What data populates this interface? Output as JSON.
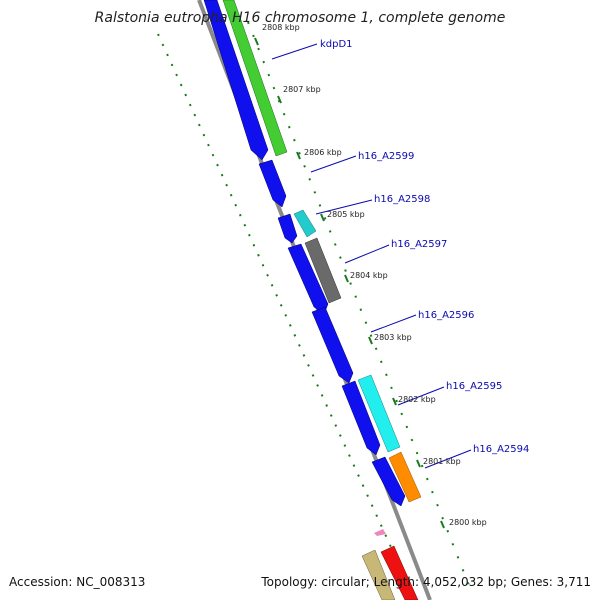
{
  "title": "Ralstonia eutropha H16 chromosome 1, complete genome",
  "footer": {
    "accession": "Accession: NC_008313",
    "summary": "Topology: circular; Length: 4,052,032 bp; Genes: 3,711"
  },
  "colors": {
    "backbone": "#8a8a8a",
    "cds_forward": "#1010ee",
    "gene_label": "#0a0ab0",
    "tick_mark": "#1a7a1a",
    "gc_dots": "#1a7a1a"
  },
  "kbp_labels": [
    "2808 kbp",
    "2807 kbp",
    "2806 kbp",
    "2805 kbp",
    "2804 kbp",
    "2803 kbp",
    "2802 kbp",
    "2801 kbp",
    "2800 kbp"
  ],
  "gene_labels": [
    "kdpD1",
    "h16_A2599",
    "h16_A2598",
    "h16_A2597",
    "h16_A2596",
    "h16_A2595",
    "h16_A2594"
  ],
  "feature_colors": [
    "#44cc33",
    "#22cccc",
    "#6a6a6a",
    "#22eeee",
    "#ff8c00",
    "#c8b878",
    "#ee1111",
    "#ee88bb"
  ]
}
